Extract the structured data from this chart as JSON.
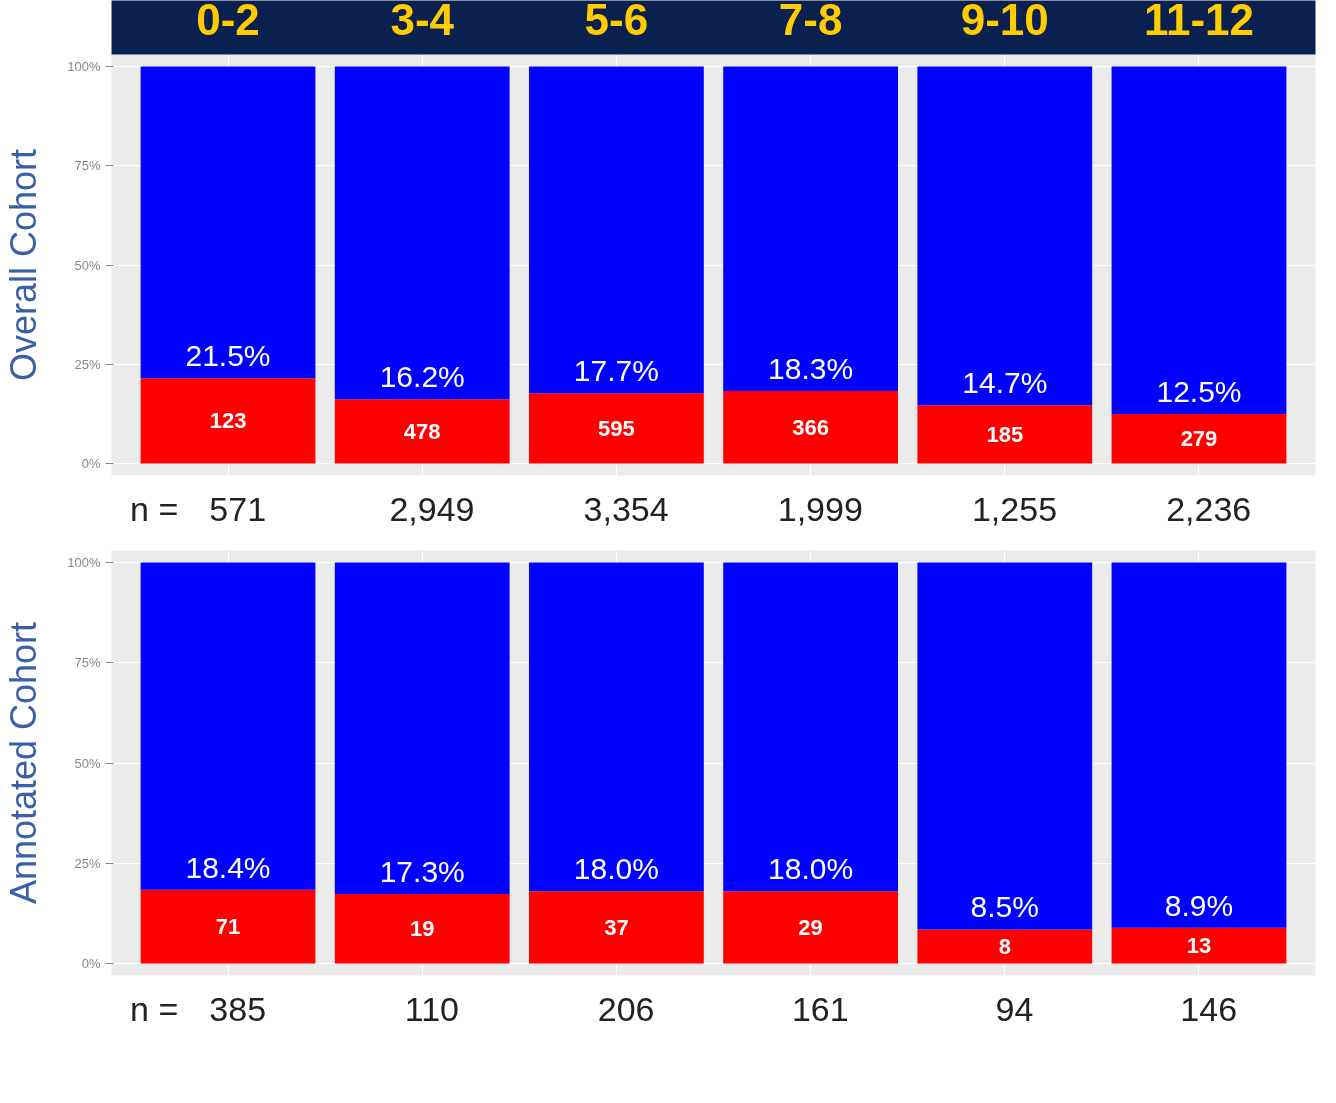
{
  "chart_data": [
    {
      "type": "bar",
      "stacked": true,
      "ylabel": "Overall Cohort",
      "categories": [
        "0-2",
        "3-4",
        "5-6",
        "7-8",
        "9-10",
        "11-12"
      ],
      "series": [
        {
          "color": "#ff0000",
          "values": [
            21.5,
            16.2,
            17.7,
            18.3,
            14.7,
            12.5
          ],
          "value_labels": [
            "21.5%",
            "16.2%",
            "17.7%",
            "18.3%",
            "14.7%",
            "12.5%"
          ]
        },
        {
          "color": "#0000ff",
          "values": [
            78.5,
            83.8,
            82.3,
            81.7,
            85.3,
            87.5
          ]
        }
      ],
      "ylim": [
        -3,
        103
      ],
      "yticks": [
        {
          "value": 0,
          "label": "0%"
        },
        {
          "value": 25,
          "label": "25%"
        },
        {
          "value": 50,
          "label": "50%"
        },
        {
          "value": 75,
          "label": "75%"
        },
        {
          "value": 100,
          "label": "100%"
        }
      ],
      "grid": true,
      "annotations": [
        "123",
        "478",
        "595",
        "366",
        "185",
        "279",
        "n =",
        "571",
        "2,949",
        "3,354",
        "1,999",
        "1,255",
        "2,236"
      ]
    },
    {
      "type": "bar",
      "stacked": true,
      "ylabel": "Annotated Cohort",
      "categories": [
        null,
        null,
        null,
        null,
        null,
        null
      ],
      "tick_labels": "y",
      "series": [
        {
          "color": "#ff0000",
          "values": [
            18.4,
            17.3,
            18.0,
            18.0,
            8.5,
            8.9
          ],
          "value_labels": [
            "18.4%",
            "17.3%",
            "18.0%",
            "18.0%",
            "8.5%",
            "8.9%"
          ]
        },
        {
          "color": "#0000ff",
          "values": [
            81.6,
            82.7,
            82.0,
            82.0,
            91.5,
            91.1
          ]
        }
      ],
      "ylim": [
        -3,
        103
      ],
      "yticks": [
        {
          "value": 0,
          "label": "0%"
        },
        {
          "value": 25,
          "label": "25%"
        },
        {
          "value": 50,
          "label": "50%"
        },
        {
          "value": 75,
          "label": "75%"
        },
        {
          "value": 100,
          "label": "100%"
        }
      ],
      "grid": true,
      "annotations": [
        "71",
        "19",
        "37",
        "29",
        "8",
        "13",
        "n =",
        "385",
        "110",
        "206",
        "161",
        "94",
        "146"
      ]
    }
  ]
}
